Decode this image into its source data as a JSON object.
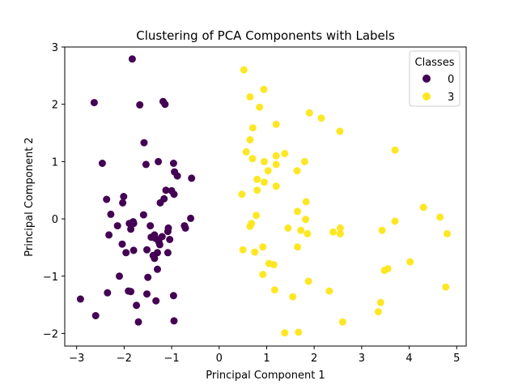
{
  "chart_data": {
    "type": "scatter",
    "title": "Clustering of PCA Components with Labels",
    "xlabel": "Principal Component 1",
    "ylabel": "Principal Component 2",
    "xlim": [
      -3.25,
      5.2
    ],
    "ylim": [
      -2.22,
      3.0
    ],
    "xticks": [
      -3,
      -2,
      -1,
      0,
      1,
      2,
      3,
      4,
      5
    ],
    "yticks": [
      -2,
      -1,
      0,
      1,
      2,
      3
    ],
    "grid": false,
    "legend": {
      "title": "Classes",
      "placement": "top-right"
    },
    "series": [
      {
        "name": "0",
        "color": "#440154",
        "points": [
          [
            -1.83,
            2.79
          ],
          [
            -2.63,
            2.03
          ],
          [
            -1.18,
            2.05
          ],
          [
            -1.67,
            1.99
          ],
          [
            -1.14,
            2.0
          ],
          [
            -1.58,
            1.33
          ],
          [
            -2.46,
            0.97
          ],
          [
            -1.28,
            1.0
          ],
          [
            -0.96,
            0.97
          ],
          [
            -1.54,
            0.95
          ],
          [
            -0.94,
            0.82
          ],
          [
            -0.88,
            0.75
          ],
          [
            -0.58,
            0.71
          ],
          [
            -1.12,
            0.5
          ],
          [
            -1.0,
            0.49
          ],
          [
            -0.95,
            0.43
          ],
          [
            -2.37,
            0.34
          ],
          [
            -1.16,
            0.35
          ],
          [
            -1.24,
            0.28
          ],
          [
            -2.01,
            0.39
          ],
          [
            -2.03,
            0.28
          ],
          [
            -2.28,
            0.08
          ],
          [
            -1.59,
            0.07
          ],
          [
            -0.6,
            0.01
          ],
          [
            -1.89,
            -0.08
          ],
          [
            -1.8,
            -0.08
          ],
          [
            -1.81,
            -0.05
          ],
          [
            -2.14,
            -0.12
          ],
          [
            -1.45,
            -0.12
          ],
          [
            -1.07,
            -0.16
          ],
          [
            -0.73,
            -0.12
          ],
          [
            -0.71,
            -0.16
          ],
          [
            -1.86,
            -0.18
          ],
          [
            -2.32,
            -0.28
          ],
          [
            -1.08,
            -0.22
          ],
          [
            -1.36,
            -0.28
          ],
          [
            -1.43,
            -0.32
          ],
          [
            -1.34,
            -0.34
          ],
          [
            -1.2,
            -0.31
          ],
          [
            -1.04,
            -0.36
          ],
          [
            -2.04,
            -0.44
          ],
          [
            -1.25,
            -0.45
          ],
          [
            -1.27,
            -0.4
          ],
          [
            -1.8,
            -0.55
          ],
          [
            -1.52,
            -0.54
          ],
          [
            -1.96,
            -0.59
          ],
          [
            -1.3,
            -0.59
          ],
          [
            -1.08,
            -0.59
          ],
          [
            -1.39,
            -0.64
          ],
          [
            -1.36,
            -0.69
          ],
          [
            -1.3,
            -0.88
          ],
          [
            -2.1,
            -1.0
          ],
          [
            -1.5,
            -1.02
          ],
          [
            -2.92,
            -1.4
          ],
          [
            -2.35,
            -1.29
          ],
          [
            -1.91,
            -1.26
          ],
          [
            -1.86,
            -1.27
          ],
          [
            -1.52,
            -1.31
          ],
          [
            -0.96,
            -1.34
          ],
          [
            -1.33,
            -1.43
          ],
          [
            -1.74,
            -1.51
          ],
          [
            -2.6,
            -1.69
          ],
          [
            -1.7,
            -1.8
          ],
          [
            -0.95,
            -1.78
          ]
        ]
      },
      {
        "name": "3",
        "color": "#fde725",
        "points": [
          [
            0.52,
            2.6
          ],
          [
            0.94,
            2.26
          ],
          [
            0.65,
            2.13
          ],
          [
            0.85,
            1.95
          ],
          [
            1.9,
            1.85
          ],
          [
            2.15,
            1.76
          ],
          [
            1.2,
            1.65
          ],
          [
            0.71,
            1.59
          ],
          [
            2.54,
            1.53
          ],
          [
            0.65,
            1.38
          ],
          [
            3.7,
            1.2
          ],
          [
            0.57,
            1.17
          ],
          [
            1.38,
            1.14
          ],
          [
            1.2,
            1.1
          ],
          [
            0.7,
            1.05
          ],
          [
            0.95,
            1.0
          ],
          [
            1.8,
            1.0
          ],
          [
            1.2,
            0.95
          ],
          [
            1.03,
            0.84
          ],
          [
            1.64,
            0.84
          ],
          [
            0.8,
            0.69
          ],
          [
            0.95,
            0.64
          ],
          [
            1.2,
            0.57
          ],
          [
            0.8,
            0.5
          ],
          [
            0.48,
            0.43
          ],
          [
            1.83,
            0.3
          ],
          [
            4.3,
            0.2
          ],
          [
            1.65,
            0.13
          ],
          [
            0.78,
            0.06
          ],
          [
            1.82,
            -0.01
          ],
          [
            4.65,
            0.03
          ],
          [
            0.68,
            -0.08
          ],
          [
            3.7,
            -0.04
          ],
          [
            0.65,
            -0.13
          ],
          [
            1.45,
            -0.16
          ],
          [
            2.55,
            -0.16
          ],
          [
            1.72,
            -0.2
          ],
          [
            3.43,
            -0.2
          ],
          [
            2.4,
            -0.23
          ],
          [
            1.86,
            -0.26
          ],
          [
            2.55,
            -0.26
          ],
          [
            4.8,
            -0.26
          ],
          [
            0.92,
            -0.49
          ],
          [
            1.65,
            -0.49
          ],
          [
            0.5,
            -0.54
          ],
          [
            0.75,
            -0.58
          ],
          [
            1.05,
            -0.78
          ],
          [
            1.15,
            -0.8
          ],
          [
            4.02,
            -0.75
          ],
          [
            3.55,
            -0.87
          ],
          [
            3.48,
            -0.9
          ],
          [
            0.92,
            -0.97
          ],
          [
            1.88,
            -1.09
          ],
          [
            4.77,
            -1.19
          ],
          [
            1.17,
            -1.24
          ],
          [
            2.32,
            -1.26
          ],
          [
            1.55,
            -1.36
          ],
          [
            3.4,
            -1.46
          ],
          [
            3.35,
            -1.62
          ],
          [
            2.6,
            -1.8
          ],
          [
            1.67,
            -1.98
          ],
          [
            1.38,
            -1.99
          ]
        ]
      }
    ]
  }
}
